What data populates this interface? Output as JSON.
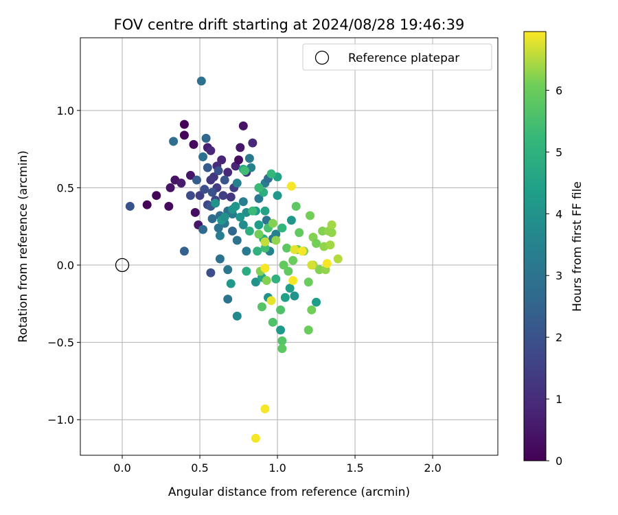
{
  "chart_data": {
    "type": "scatter",
    "title": "FOV centre drift starting at 2024/08/28 19:46:39",
    "xlabel": "Angular distance from reference (arcmin)",
    "ylabel": "Rotation from reference (arcmin)",
    "xlim": [
      -0.27,
      2.42
    ],
    "ylim": [
      -1.23,
      1.47
    ],
    "xticks": [
      0.0,
      0.5,
      1.0,
      1.5,
      2.0
    ],
    "xtick_labels": [
      "0.0",
      "0.5",
      "1.0",
      "1.5",
      "2.0"
    ],
    "yticks": [
      -1.0,
      -0.5,
      0.0,
      0.5,
      1.0
    ],
    "ytick_labels": [
      "−1.0",
      "−0.5",
      "0.0",
      "0.5",
      "1.0"
    ],
    "grid": true,
    "legend": {
      "position": "top-right",
      "entries": [
        "Reference platepar"
      ]
    },
    "reference_point": {
      "x": 0.0,
      "y": 0.0
    },
    "colorbar": {
      "label": "Hours from first FF file",
      "min": 0,
      "max": 6.95,
      "ticks": [
        0,
        1,
        2,
        3,
        4,
        5,
        6
      ],
      "tick_labels": [
        "0",
        "1",
        "2",
        "3",
        "4",
        "5",
        "6"
      ],
      "colormap": "viridis"
    },
    "points": [
      {
        "x": 0.4,
        "y": 0.91,
        "c": 0.1
      },
      {
        "x": 0.4,
        "y": 0.84,
        "c": 0.1
      },
      {
        "x": 0.46,
        "y": 0.78,
        "c": 0.2
      },
      {
        "x": 0.22,
        "y": 0.45,
        "c": 0.1
      },
      {
        "x": 0.16,
        "y": 0.39,
        "c": 0.1
      },
      {
        "x": 0.3,
        "y": 0.38,
        "c": 0.2
      },
      {
        "x": 0.31,
        "y": 0.5,
        "c": 0.4
      },
      {
        "x": 0.34,
        "y": 0.55,
        "c": 0.4
      },
      {
        "x": 0.38,
        "y": 0.53,
        "c": 0.6
      },
      {
        "x": 0.44,
        "y": 0.58,
        "c": 0.5
      },
      {
        "x": 0.47,
        "y": 0.34,
        "c": 0.3
      },
      {
        "x": 0.49,
        "y": 0.26,
        "c": 0.5
      },
      {
        "x": 0.55,
        "y": 0.76,
        "c": 0.7
      },
      {
        "x": 0.57,
        "y": 0.74,
        "c": 0.9
      },
      {
        "x": 0.64,
        "y": 0.68,
        "c": 0.8
      },
      {
        "x": 0.61,
        "y": 0.64,
        "c": 1.0
      },
      {
        "x": 0.68,
        "y": 0.6,
        "c": 0.9
      },
      {
        "x": 0.73,
        "y": 0.64,
        "c": 0.8
      },
      {
        "x": 0.75,
        "y": 0.68,
        "c": 0.3
      },
      {
        "x": 0.78,
        "y": 0.9,
        "c": 0.4
      },
      {
        "x": 0.76,
        "y": 0.76,
        "c": 0.5
      },
      {
        "x": 0.84,
        "y": 0.79,
        "c": 0.9
      },
      {
        "x": 0.8,
        "y": 0.6,
        "c": 1.2
      },
      {
        "x": 0.57,
        "y": 0.55,
        "c": 1.2
      },
      {
        "x": 0.59,
        "y": 0.57,
        "c": 1.3
      },
      {
        "x": 0.61,
        "y": 0.5,
        "c": 1.4
      },
      {
        "x": 0.65,
        "y": 0.45,
        "c": 1.5
      },
      {
        "x": 0.7,
        "y": 0.44,
        "c": 1.3
      },
      {
        "x": 0.72,
        "y": 0.5,
        "c": 1.4
      },
      {
        "x": 0.6,
        "y": 0.42,
        "c": 1.6
      },
      {
        "x": 0.5,
        "y": 0.45,
        "c": 1.5
      },
      {
        "x": 0.55,
        "y": 0.39,
        "c": 1.7
      },
      {
        "x": 0.53,
        "y": 0.49,
        "c": 1.9
      },
      {
        "x": 0.58,
        "y": 0.47,
        "c": 2.0
      },
      {
        "x": 0.62,
        "y": 0.61,
        "c": 2.0
      },
      {
        "x": 0.66,
        "y": 0.55,
        "c": 2.1
      },
      {
        "x": 0.57,
        "y": 0.38,
        "c": 2.1
      },
      {
        "x": 0.44,
        "y": 0.45,
        "c": 1.8
      },
      {
        "x": 0.48,
        "y": 0.55,
        "c": 2.3
      },
      {
        "x": 0.05,
        "y": 0.38,
        "c": 2.0
      },
      {
        "x": 0.4,
        "y": 0.09,
        "c": 2.4
      },
      {
        "x": 0.57,
        "y": -0.05,
        "c": 1.9
      },
      {
        "x": 0.52,
        "y": 0.23,
        "c": 2.6
      },
      {
        "x": 0.55,
        "y": 0.63,
        "c": 2.2
      },
      {
        "x": 0.58,
        "y": 0.3,
        "c": 2.7
      },
      {
        "x": 0.33,
        "y": 0.8,
        "c": 2.8
      },
      {
        "x": 0.52,
        "y": 0.7,
        "c": 2.9
      },
      {
        "x": 0.54,
        "y": 0.82,
        "c": 2.6
      },
      {
        "x": 0.51,
        "y": 1.19,
        "c": 2.9
      },
      {
        "x": 0.63,
        "y": 0.32,
        "c": 2.8
      },
      {
        "x": 0.62,
        "y": 0.24,
        "c": 3.0
      },
      {
        "x": 0.66,
        "y": 0.27,
        "c": 3.1
      },
      {
        "x": 0.68,
        "y": 0.35,
        "c": 2.9
      },
      {
        "x": 0.71,
        "y": 0.33,
        "c": 3.2
      },
      {
        "x": 0.63,
        "y": 0.19,
        "c": 3.3
      },
      {
        "x": 0.74,
        "y": 0.16,
        "c": 3.0
      },
      {
        "x": 0.63,
        "y": 0.04,
        "c": 2.9
      },
      {
        "x": 0.68,
        "y": -0.03,
        "c": 3.1
      },
      {
        "x": 0.68,
        "y": -0.22,
        "c": 3.0
      },
      {
        "x": 0.71,
        "y": 0.22,
        "c": 2.6
      },
      {
        "x": 0.8,
        "y": 0.09,
        "c": 3.2
      },
      {
        "x": 0.74,
        "y": 0.53,
        "c": 3.4
      },
      {
        "x": 0.78,
        "y": 0.41,
        "c": 3.3
      },
      {
        "x": 0.82,
        "y": 0.69,
        "c": 3.1
      },
      {
        "x": 0.83,
        "y": 0.63,
        "c": 3.4
      },
      {
        "x": 0.88,
        "y": 0.43,
        "c": 3.2
      },
      {
        "x": 0.93,
        "y": 0.29,
        "c": 3.0
      },
      {
        "x": 0.92,
        "y": 0.53,
        "c": 3.3
      },
      {
        "x": 0.94,
        "y": 0.56,
        "c": 2.8
      },
      {
        "x": 0.97,
        "y": 0.17,
        "c": 3.1
      },
      {
        "x": 0.95,
        "y": 0.09,
        "c": 3.5
      },
      {
        "x": 0.99,
        "y": 0.2,
        "c": 3.5
      },
      {
        "x": 0.74,
        "y": -0.33,
        "c": 3.7
      },
      {
        "x": 0.78,
        "y": 0.26,
        "c": 3.8
      },
      {
        "x": 0.8,
        "y": 0.34,
        "c": 3.9
      },
      {
        "x": 0.71,
        "y": 0.36,
        "c": 4.0
      },
      {
        "x": 0.73,
        "y": 0.38,
        "c": 4.1
      },
      {
        "x": 0.76,
        "y": 0.31,
        "c": 4.1
      },
      {
        "x": 0.86,
        "y": 0.35,
        "c": 4.2
      },
      {
        "x": 0.86,
        "y": -0.11,
        "c": 4.0
      },
      {
        "x": 0.7,
        "y": -0.12,
        "c": 4.2
      },
      {
        "x": 0.64,
        "y": 0.29,
        "c": 4.2
      },
      {
        "x": 0.66,
        "y": 0.31,
        "c": 3.9
      },
      {
        "x": 0.6,
        "y": 0.4,
        "c": 4.0
      },
      {
        "x": 0.88,
        "y": 0.26,
        "c": 4.3
      },
      {
        "x": 0.94,
        "y": -0.21,
        "c": 4.0
      },
      {
        "x": 1.0,
        "y": 0.45,
        "c": 4.2
      },
      {
        "x": 1.02,
        "y": -0.42,
        "c": 4.2
      },
      {
        "x": 1.11,
        "y": -0.2,
        "c": 4.0
      },
      {
        "x": 1.09,
        "y": 0.29,
        "c": 4.1
      },
      {
        "x": 1.05,
        "y": -0.21,
        "c": 4.4
      },
      {
        "x": 1.25,
        "y": -0.24,
        "c": 4.3
      },
      {
        "x": 1.08,
        "y": -0.15,
        "c": 4.3
      },
      {
        "x": 0.92,
        "y": 0.35,
        "c": 4.5
      },
      {
        "x": 0.9,
        "y": -0.08,
        "c": 4.6
      },
      {
        "x": 1.0,
        "y": 0.57,
        "c": 4.5
      },
      {
        "x": 0.8,
        "y": -0.04,
        "c": 4.8
      },
      {
        "x": 0.78,
        "y": 0.62,
        "c": 4.8
      },
      {
        "x": 0.91,
        "y": 0.47,
        "c": 4.9
      },
      {
        "x": 0.82,
        "y": 0.22,
        "c": 4.9
      },
      {
        "x": 0.91,
        "y": 0.17,
        "c": 4.9
      },
      {
        "x": 0.87,
        "y": 0.09,
        "c": 5.0
      },
      {
        "x": 0.99,
        "y": -0.09,
        "c": 5.0
      },
      {
        "x": 1.03,
        "y": 0.24,
        "c": 5.1
      },
      {
        "x": 0.96,
        "y": 0.59,
        "c": 5.2
      },
      {
        "x": 0.88,
        "y": 0.5,
        "c": 5.3
      },
      {
        "x": 0.84,
        "y": 0.35,
        "c": 5.3
      },
      {
        "x": 0.79,
        "y": 0.61,
        "c": 5.4
      },
      {
        "x": 0.92,
        "y": 0.11,
        "c": 5.4
      },
      {
        "x": 0.94,
        "y": 0.24,
        "c": 5.5
      },
      {
        "x": 0.97,
        "y": -0.37,
        "c": 5.6
      },
      {
        "x": 0.9,
        "y": -0.27,
        "c": 5.7
      },
      {
        "x": 1.02,
        "y": -0.29,
        "c": 5.6
      },
      {
        "x": 1.03,
        "y": -0.49,
        "c": 5.7
      },
      {
        "x": 1.03,
        "y": -0.54,
        "c": 5.8
      },
      {
        "x": 1.06,
        "y": 0.11,
        "c": 5.8
      },
      {
        "x": 1.04,
        "y": 0.0,
        "c": 5.9
      },
      {
        "x": 1.07,
        "y": -0.04,
        "c": 5.9
      },
      {
        "x": 1.1,
        "y": 0.03,
        "c": 6.0
      },
      {
        "x": 1.12,
        "y": 0.38,
        "c": 5.8
      },
      {
        "x": 1.14,
        "y": 0.21,
        "c": 5.9
      },
      {
        "x": 1.13,
        "y": 0.1,
        "c": 6.0
      },
      {
        "x": 1.17,
        "y": 0.09,
        "c": 6.1
      },
      {
        "x": 1.2,
        "y": -0.11,
        "c": 6.0
      },
      {
        "x": 1.2,
        "y": -0.42,
        "c": 6.0
      },
      {
        "x": 1.21,
        "y": 0.32,
        "c": 6.1
      },
      {
        "x": 1.22,
        "y": -0.29,
        "c": 6.1
      },
      {
        "x": 1.23,
        "y": 0.18,
        "c": 6.2
      },
      {
        "x": 1.25,
        "y": 0.14,
        "c": 6.1
      },
      {
        "x": 1.27,
        "y": -0.03,
        "c": 6.2
      },
      {
        "x": 1.29,
        "y": 0.22,
        "c": 6.2
      },
      {
        "x": 1.3,
        "y": 0.12,
        "c": 6.3
      },
      {
        "x": 1.31,
        "y": -0.03,
        "c": 6.3
      },
      {
        "x": 1.33,
        "y": 0.22,
        "c": 6.3
      },
      {
        "x": 1.34,
        "y": 0.13,
        "c": 6.4
      },
      {
        "x": 1.35,
        "y": 0.26,
        "c": 6.4
      },
      {
        "x": 1.35,
        "y": 0.21,
        "c": 6.3
      },
      {
        "x": 1.39,
        "y": 0.04,
        "c": 6.5
      },
      {
        "x": 1.23,
        "y": 0.0,
        "c": 6.4
      },
      {
        "x": 0.88,
        "y": 0.2,
        "c": 6.1
      },
      {
        "x": 0.89,
        "y": -0.04,
        "c": 6.2
      },
      {
        "x": 0.93,
        "y": -0.1,
        "c": 6.2
      },
      {
        "x": 0.99,
        "y": 0.16,
        "c": 6.3
      },
      {
        "x": 0.97,
        "y": 0.27,
        "c": 6.2
      },
      {
        "x": 0.92,
        "y": 0.15,
        "c": 6.6
      },
      {
        "x": 0.96,
        "y": -0.23,
        "c": 6.8
      },
      {
        "x": 0.92,
        "y": -0.02,
        "c": 6.9
      },
      {
        "x": 1.09,
        "y": 0.51,
        "c": 6.9
      },
      {
        "x": 1.1,
        "y": -0.1,
        "c": 6.9
      },
      {
        "x": 1.11,
        "y": 0.1,
        "c": 6.8
      },
      {
        "x": 1.16,
        "y": 0.09,
        "c": 6.9
      },
      {
        "x": 1.22,
        "y": 0.0,
        "c": 6.7
      },
      {
        "x": 1.32,
        "y": 0.01,
        "c": 6.9
      },
      {
        "x": 0.92,
        "y": -0.93,
        "c": 6.9
      },
      {
        "x": 0.86,
        "y": -1.12,
        "c": 6.9
      }
    ]
  }
}
